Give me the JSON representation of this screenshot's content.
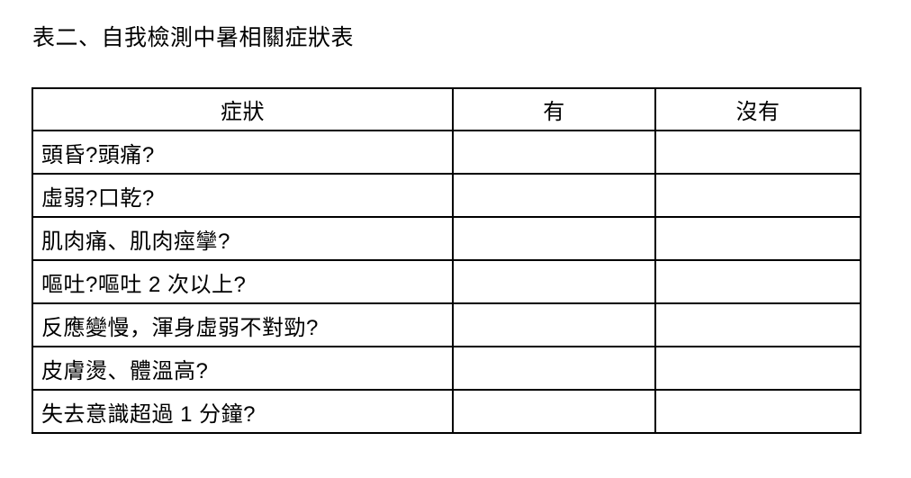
{
  "title": "表二、自我檢測中暑相關症狀表",
  "table": {
    "headers": [
      "症狀",
      "有",
      "沒有"
    ],
    "rows": [
      "頭昏?頭痛?",
      "虛弱?口乾?",
      "肌肉痛、肌肉痙攣?",
      "嘔吐?嘔吐 2 次以上?",
      "反應變慢，渾身虛弱不對勁?",
      "皮膚燙、體溫高?",
      "失去意識超過 1 分鐘?"
    ],
    "colors": {
      "border": "#000000",
      "text": "#000000",
      "background": "#ffffff"
    }
  }
}
